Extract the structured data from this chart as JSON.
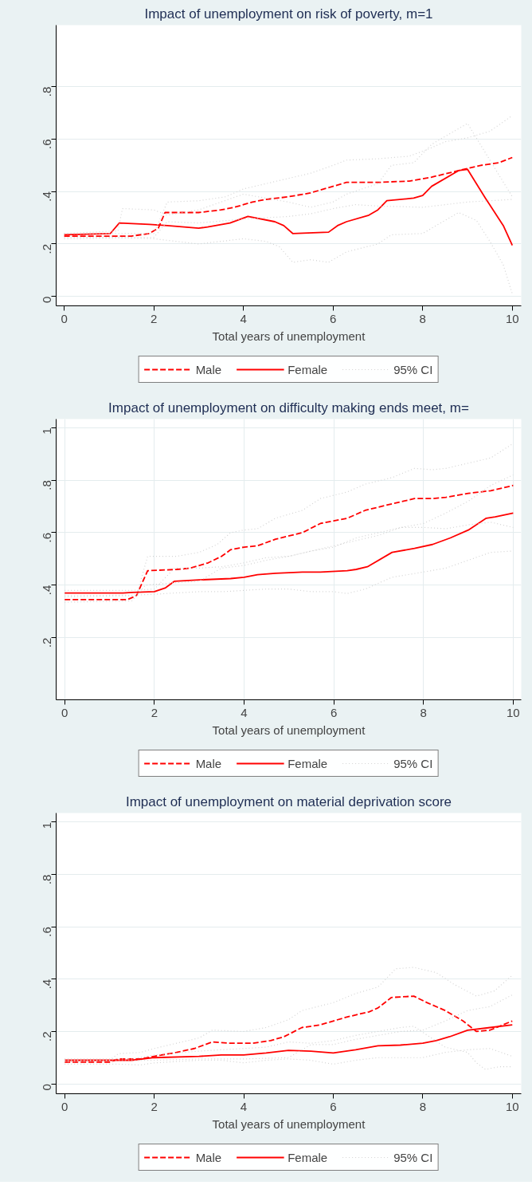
{
  "chart_data": [
    {
      "type": "line",
      "title": "Impact of unemployment on risk of poverty, m=1",
      "xlabel": "Total years of unemployment",
      "xlim": [
        -0.18,
        10.2
      ],
      "ylim": [
        -0.036,
        1.035
      ],
      "xticks": [
        0,
        2,
        4,
        6,
        8,
        10
      ],
      "yticks": [
        {
          "value": 0,
          "label": "0"
        },
        {
          "value": 0.2,
          "label": ".2"
        },
        {
          "value": 0.4,
          "label": ".4"
        },
        {
          "value": 0.6,
          "label": ".6"
        },
        {
          "value": 0.8,
          "label": ".8"
        }
      ],
      "grid": "y",
      "legend": "bottom",
      "series": [
        {
          "name": "Male",
          "color": "#ff0000",
          "line_style": "dashed",
          "x": [
            0,
            1,
            1.5,
            1.9,
            2.1,
            2.25,
            3,
            3.5,
            3.8,
            4.2,
            4.5,
            5,
            5.5,
            6,
            6.3,
            7,
            7.7,
            8.2,
            8.8,
            9.3,
            9.7,
            10
          ],
          "values": [
            0.23,
            0.23,
            0.23,
            0.24,
            0.26,
            0.32,
            0.32,
            0.33,
            0.34,
            0.36,
            0.37,
            0.38,
            0.395,
            0.42,
            0.435,
            0.435,
            0.44,
            0.455,
            0.48,
            0.5,
            0.51,
            0.53
          ]
        },
        {
          "name": "Female",
          "color": "#ff0000",
          "line_style": "solid",
          "x": [
            0,
            1.03,
            1.23,
            1.9,
            2.3,
            3,
            3.2,
            3.7,
            4.1,
            4.7,
            4.9,
            5.1,
            5.9,
            6.1,
            6.3,
            6.8,
            7.0,
            7.2,
            7.8,
            8.0,
            8.2,
            8.8,
            9.0,
            9.4,
            9.8,
            10
          ],
          "values": [
            0.235,
            0.24,
            0.28,
            0.275,
            0.27,
            0.26,
            0.265,
            0.28,
            0.305,
            0.285,
            0.27,
            0.24,
            0.245,
            0.27,
            0.285,
            0.31,
            0.33,
            0.365,
            0.375,
            0.385,
            0.42,
            0.48,
            0.485,
            0.375,
            0.27,
            0.195
          ]
        },
        {
          "name": "95% CI",
          "color": "#d3d3d3",
          "line_style": "dotted",
          "x": [
            0,
            1.2,
            2,
            2.3,
            3,
            3.6,
            4,
            4.5,
            5,
            5.5,
            6,
            6.3,
            7,
            7.7,
            8.1,
            8.5,
            9,
            9.5,
            10
          ],
          "values": [
            0.24,
            0.24,
            0.24,
            0.36,
            0.365,
            0.38,
            0.41,
            0.43,
            0.45,
            0.47,
            0.5,
            0.52,
            0.525,
            0.535,
            0.56,
            0.59,
            0.605,
            0.63,
            0.69
          ]
        },
        {
          "color": "#d3d3d3",
          "line_style": "dotted",
          "x": [
            0,
            2,
            2.3,
            3,
            4,
            5,
            5.5,
            6,
            6.5,
            7,
            8,
            9,
            10
          ],
          "values": [
            0.22,
            0.225,
            0.285,
            0.28,
            0.295,
            0.305,
            0.315,
            0.335,
            0.35,
            0.345,
            0.34,
            0.36,
            0.37
          ]
        },
        {
          "color": "#d3d3d3",
          "line_style": "dotted",
          "x": [
            0,
            1.2,
            1.3,
            2,
            2.3,
            3,
            4,
            5,
            5.5,
            6,
            6.3,
            7,
            7.3,
            7.8,
            8.2,
            9,
            9.5,
            10
          ],
          "values": [
            0.24,
            0.25,
            0.335,
            0.33,
            0.31,
            0.33,
            0.39,
            0.36,
            0.34,
            0.36,
            0.39,
            0.43,
            0.5,
            0.51,
            0.58,
            0.66,
            0.52,
            0.38
          ]
        },
        {
          "color": "#d3d3d3",
          "line_style": "dotted",
          "x": [
            0,
            1.2,
            2,
            3,
            3.5,
            4,
            4.5,
            4.8,
            5.1,
            5.5,
            5.9,
            6.3,
            7,
            7.3,
            8,
            8.5,
            8.8,
            9.2,
            9.5,
            9.8,
            10
          ],
          "values": [
            0.225,
            0.225,
            0.22,
            0.2,
            0.21,
            0.22,
            0.21,
            0.19,
            0.13,
            0.14,
            0.13,
            0.17,
            0.2,
            0.235,
            0.24,
            0.29,
            0.32,
            0.29,
            0.21,
            0.12,
            0.01
          ]
        }
      ]
    },
    {
      "type": "line",
      "title": "Impact of unemployment on difficulty making ends meet, m=",
      "xlabel": "Total years of unemployment",
      "xlim": [
        -0.19,
        10.18
      ],
      "ylim": [
        -0.037,
        1.033
      ],
      "xticks": [
        0,
        2,
        4,
        6,
        8,
        10
      ],
      "yticks": [
        {
          "value": 0.2,
          "label": ".2"
        },
        {
          "value": 0.4,
          "label": ".4"
        },
        {
          "value": 0.6,
          "label": ".6"
        },
        {
          "value": 0.8,
          "label": ".8"
        },
        1
      ],
      "grid": true,
      "legend": "bottom",
      "series": [
        {
          "name": "Male",
          "color": "#ff0000",
          "line_style": "dashed",
          "x": [
            0,
            1.4,
            1.6,
            1.85,
            2.5,
            2.8,
            3.2,
            3.5,
            3.7,
            4,
            4.3,
            4.7,
            5.3,
            5.7,
            6,
            6.3,
            6.7,
            7.3,
            7.8,
            8.2,
            8.5,
            9,
            9.5,
            10
          ],
          "values": [
            0.345,
            0.345,
            0.36,
            0.455,
            0.46,
            0.465,
            0.485,
            0.51,
            0.535,
            0.545,
            0.55,
            0.575,
            0.6,
            0.635,
            0.645,
            0.655,
            0.685,
            0.71,
            0.73,
            0.73,
            0.735,
            0.75,
            0.76,
            0.78
          ]
        },
        {
          "name": "Female",
          "color": "#ff0000",
          "line_style": "solid",
          "x": [
            0,
            1.3,
            1.5,
            2,
            2.25,
            2.45,
            3,
            3.7,
            4,
            4.3,
            4.7,
            5.3,
            5.7,
            6.3,
            6.5,
            6.75,
            7.3,
            7.8,
            8.2,
            8.6,
            9,
            9.4,
            9.6,
            10
          ],
          "values": [
            0.37,
            0.37,
            0.372,
            0.375,
            0.39,
            0.415,
            0.42,
            0.425,
            0.43,
            0.44,
            0.445,
            0.45,
            0.45,
            0.455,
            0.46,
            0.47,
            0.525,
            0.54,
            0.555,
            0.58,
            0.61,
            0.655,
            0.66,
            0.675
          ]
        },
        {
          "name": "95% CI",
          "color": "#d3d3d3",
          "line_style": "dotted",
          "x": [
            0,
            1.6,
            1.85,
            2.5,
            3,
            3.4,
            3.7,
            4,
            4.3,
            4.7,
            5.3,
            5.7,
            6.3,
            6.7,
            7.3,
            7.8,
            8.2,
            8.5,
            9,
            9.5,
            10
          ],
          "values": [
            0.355,
            0.36,
            0.51,
            0.51,
            0.525,
            0.555,
            0.6,
            0.61,
            0.615,
            0.655,
            0.685,
            0.73,
            0.755,
            0.785,
            0.81,
            0.845,
            0.84,
            0.845,
            0.865,
            0.885,
            0.94
          ]
        },
        {
          "color": "#d3d3d3",
          "line_style": "dotted",
          "x": [
            0,
            1.5,
            1.8,
            2.5,
            3,
            3.5,
            4,
            4.5,
            5,
            5.5,
            6,
            6.5,
            7,
            7.5,
            8,
            8.5,
            9,
            9.5,
            10
          ],
          "values": [
            0.335,
            0.34,
            0.4,
            0.41,
            0.415,
            0.465,
            0.475,
            0.495,
            0.51,
            0.53,
            0.545,
            0.58,
            0.6,
            0.62,
            0.62,
            0.615,
            0.63,
            0.64,
            0.62
          ]
        },
        {
          "color": "#d3d3d3",
          "line_style": "dotted",
          "x": [
            0,
            1.5,
            2,
            2.45,
            3,
            3.5,
            4,
            4.5,
            5,
            5.5,
            6,
            6.5,
            7,
            7.5,
            8,
            8.5,
            9,
            9.5,
            10
          ],
          "values": [
            0.38,
            0.38,
            0.385,
            0.465,
            0.465,
            0.47,
            0.485,
            0.505,
            0.51,
            0.53,
            0.55,
            0.57,
            0.59,
            0.62,
            0.635,
            0.675,
            0.72,
            0.78,
            0.82
          ]
        },
        {
          "color": "#d3d3d3",
          "line_style": "dotted",
          "x": [
            0,
            1.5,
            2,
            2.45,
            3,
            3.5,
            4,
            4.5,
            5,
            5.5,
            6,
            6.3,
            6.7,
            7.3,
            8,
            8.5,
            9,
            9.5,
            10
          ],
          "values": [
            0.36,
            0.362,
            0.365,
            0.37,
            0.375,
            0.375,
            0.38,
            0.385,
            0.385,
            0.375,
            0.375,
            0.368,
            0.385,
            0.43,
            0.45,
            0.465,
            0.495,
            0.525,
            0.53
          ]
        }
      ]
    },
    {
      "type": "line",
      "title": "Impact of unemployment on material deprivation score",
      "xlabel": "Total years of unemployment",
      "xlim": [
        -0.19,
        10.2
      ],
      "ylim": [
        -0.038,
        1.035
      ],
      "xticks": [
        0,
        2,
        4,
        6,
        8,
        10
      ],
      "yticks": [
        {
          "value": 0,
          "label": "0"
        },
        {
          "value": 0.2,
          "label": ".2"
        },
        {
          "value": 0.4,
          "label": ".4"
        },
        {
          "value": 0.6,
          "label": ".6"
        },
        {
          "value": 0.8,
          "label": ".8"
        },
        1
      ],
      "grid": "y",
      "legend": "bottom",
      "series": [
        {
          "name": "Male",
          "color": "#ff0000",
          "line_style": "dashed",
          "x": [
            0,
            1,
            1.2,
            1.7,
            2,
            2.5,
            2.9,
            3.3,
            3.7,
            4.2,
            4.6,
            4.9,
            5.3,
            5.7,
            6,
            6.3,
            6.8,
            7,
            7.3,
            7.8,
            8.1,
            8.5,
            8.9,
            9.2,
            9.5,
            10
          ],
          "values": [
            0.083,
            0.083,
            0.095,
            0.095,
            0.105,
            0.12,
            0.135,
            0.16,
            0.155,
            0.155,
            0.165,
            0.18,
            0.215,
            0.225,
            0.24,
            0.255,
            0.275,
            0.29,
            0.33,
            0.335,
            0.31,
            0.28,
            0.24,
            0.2,
            0.205,
            0.24
          ]
        },
        {
          "name": "Female",
          "color": "#ff0000",
          "line_style": "solid",
          "x": [
            0,
            1.5,
            2,
            3,
            3.5,
            4,
            4.5,
            5,
            5.5,
            6,
            6.5,
            7,
            7.5,
            8,
            8.3,
            8.6,
            9,
            9.5,
            10
          ],
          "values": [
            0.09,
            0.09,
            0.1,
            0.105,
            0.11,
            0.11,
            0.118,
            0.128,
            0.125,
            0.118,
            0.13,
            0.145,
            0.148,
            0.155,
            0.165,
            0.18,
            0.205,
            0.215,
            0.225
          ]
        },
        {
          "name": "95% CI",
          "color": "#d3d3d3",
          "line_style": "dotted",
          "x": [
            0,
            1,
            1.2,
            1.7,
            2,
            2.5,
            3,
            3.3,
            4,
            4.5,
            5,
            5.3,
            6,
            6.5,
            7,
            7.4,
            7.8,
            8.3,
            8.7,
            9.2,
            9.6,
            10
          ],
          "values": [
            0.09,
            0.09,
            0.115,
            0.12,
            0.135,
            0.155,
            0.175,
            0.205,
            0.2,
            0.215,
            0.245,
            0.28,
            0.31,
            0.345,
            0.37,
            0.44,
            0.445,
            0.425,
            0.38,
            0.335,
            0.355,
            0.415
          ]
        },
        {
          "color": "#d3d3d3",
          "line_style": "dotted",
          "x": [
            0,
            1.5,
            2,
            3,
            3.5,
            4,
            4.5,
            5,
            5.5,
            6,
            6.5,
            7,
            7.5,
            7.8,
            8.5,
            9,
            9.2,
            9.4,
            9.7,
            10
          ],
          "values": [
            0.095,
            0.095,
            0.11,
            0.125,
            0.13,
            0.135,
            0.14,
            0.16,
            0.155,
            0.165,
            0.185,
            0.2,
            0.215,
            0.22,
            0.14,
            0.12,
            0.08,
            0.055,
            0.065,
            0.065
          ]
        },
        {
          "color": "#d3d3d3",
          "line_style": "dotted",
          "x": [
            0,
            1.2,
            1.7,
            2,
            3,
            3.5,
            4,
            4.5,
            5,
            5.5,
            6,
            6.5,
            7,
            7.5,
            8,
            8.5,
            9,
            9.5,
            10
          ],
          "values": [
            0.075,
            0.075,
            0.072,
            0.08,
            0.09,
            0.09,
            0.08,
            0.09,
            0.095,
            0.09,
            0.075,
            0.09,
            0.1,
            0.1,
            0.1,
            0.12,
            0.13,
            0.135,
            0.105
          ]
        },
        {
          "color": "#d3d3d3",
          "line_style": "dotted",
          "x": [
            0,
            2,
            3,
            4,
            5,
            5.5,
            6,
            6.5,
            7,
            7.5,
            8,
            8.5,
            9,
            9.5,
            10
          ],
          "values": [
            0.085,
            0.09,
            0.095,
            0.095,
            0.1,
            0.15,
            0.15,
            0.17,
            0.185,
            0.2,
            0.205,
            0.24,
            0.28,
            0.295,
            0.34
          ]
        }
      ]
    }
  ]
}
